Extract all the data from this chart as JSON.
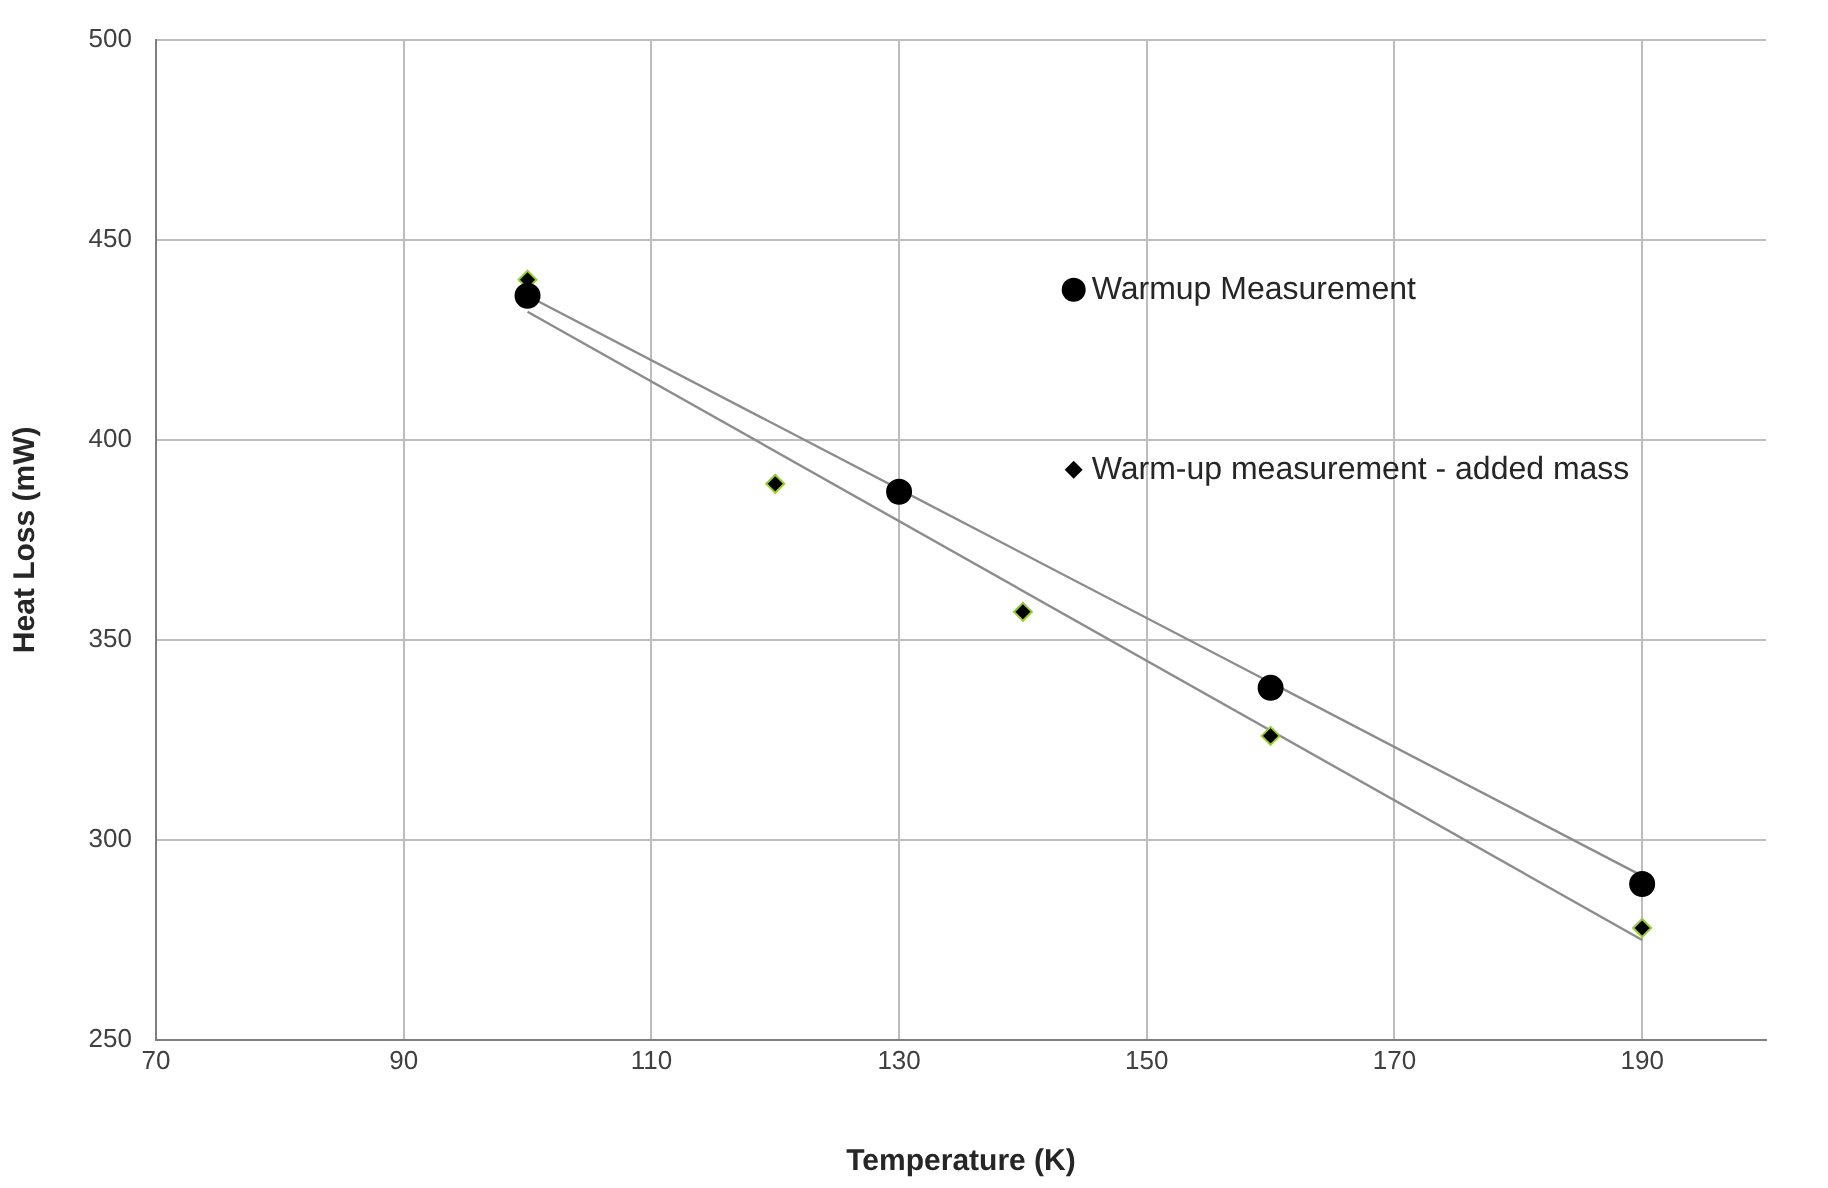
{
  "chart_data": {
    "type": "scatter",
    "xlabel": "Temperature (K)",
    "ylabel": "Heat Loss (mW)",
    "xlim": [
      70,
      200
    ],
    "xticks": [
      70,
      90,
      110,
      130,
      150,
      170,
      190
    ],
    "ylim": [
      250,
      500
    ],
    "yticks": [
      250,
      300,
      350,
      400,
      450,
      500
    ],
    "grid": true,
    "legend": "right",
    "series": [
      {
        "name": "Warmup Measurement",
        "type": "scatter",
        "marker": "circle",
        "color": "#000000",
        "x": [
          100,
          130,
          160,
          190
        ],
        "values": [
          436,
          387,
          338,
          289
        ]
      },
      {
        "name": "Warm-up measurement - added mass",
        "type": "scatter",
        "marker": "diamond",
        "color": "#000000",
        "x": [
          100,
          120,
          140,
          160,
          190
        ],
        "values": [
          440,
          389,
          357,
          326,
          278
        ]
      },
      {
        "type": "line",
        "marker": "none",
        "line_style": "solid",
        "color": "#8c8c8c",
        "x": [
          100,
          190
        ],
        "values": [
          436,
          291
        ]
      },
      {
        "type": "line",
        "marker": "none",
        "line_style": "solid",
        "color": "#8c8c8c",
        "x": [
          100,
          190
        ],
        "values": [
          432,
          275
        ]
      }
    ]
  }
}
